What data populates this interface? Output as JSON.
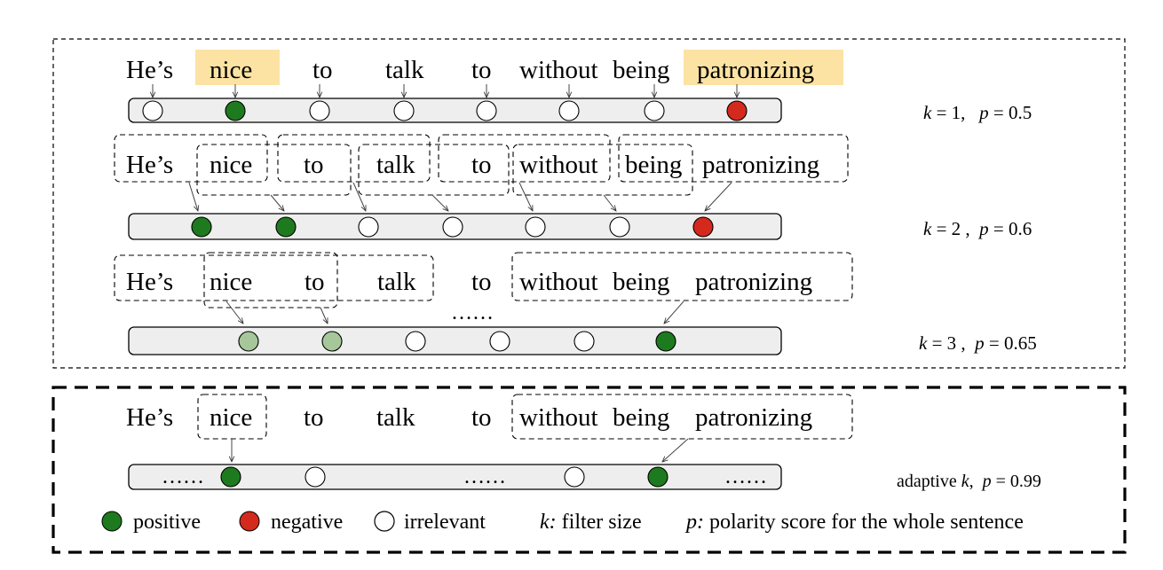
{
  "sentence": [
    "He’s",
    "nice",
    "to",
    "talk",
    "to",
    "without",
    "being",
    "patronizing"
  ],
  "rows": [
    {
      "k_label": "k",
      "k_eq": " = 1,   ",
      "p_label": "p",
      "p_eq": " = 0.5",
      "polarities": [
        "irrelevant",
        "positive",
        "irrelevant",
        "irrelevant",
        "irrelevant",
        "irrelevant",
        "irrelevant",
        "negative"
      ]
    },
    {
      "k_label": "k",
      "k_eq": " = 2 ,  ",
      "p_label": "p",
      "p_eq": " = 0.6",
      "polarities": [
        "positive",
        "positive",
        "irrelevant",
        "irrelevant",
        "irrelevant",
        "irrelevant",
        "negative"
      ]
    },
    {
      "k_label": "k",
      "k_eq": " = 3 ,  ",
      "p_label": "p",
      "p_eq": " = 0.65",
      "polarities": [
        "weak-positive",
        "weak-positive",
        "irrelevant",
        "irrelevant",
        "irrelevant",
        "positive"
      ]
    },
    {
      "k_prefix": "adaptive ",
      "k_label": "k",
      "k_eq": ",  ",
      "p_label": "p",
      "p_eq": " = 0.99",
      "polarities": [
        "positive",
        "irrelevant",
        "irrelevant",
        "positive"
      ]
    }
  ],
  "ellipsis": "……",
  "legend": {
    "positive": "positive",
    "negative": "negative",
    "irrelevant": "irrelevant",
    "k_symbol": "k:",
    "k_text": " filter size",
    "p_symbol": "p:",
    "p_text": " polarity score for the whole sentence"
  },
  "colors": {
    "positive": "#1e7a1e",
    "negative": "#d42a1e",
    "weak-positive": "#a6c79a",
    "irrelevant": "#ffffff",
    "highlight": "#fce3a4",
    "strip": "#eeeeee"
  }
}
